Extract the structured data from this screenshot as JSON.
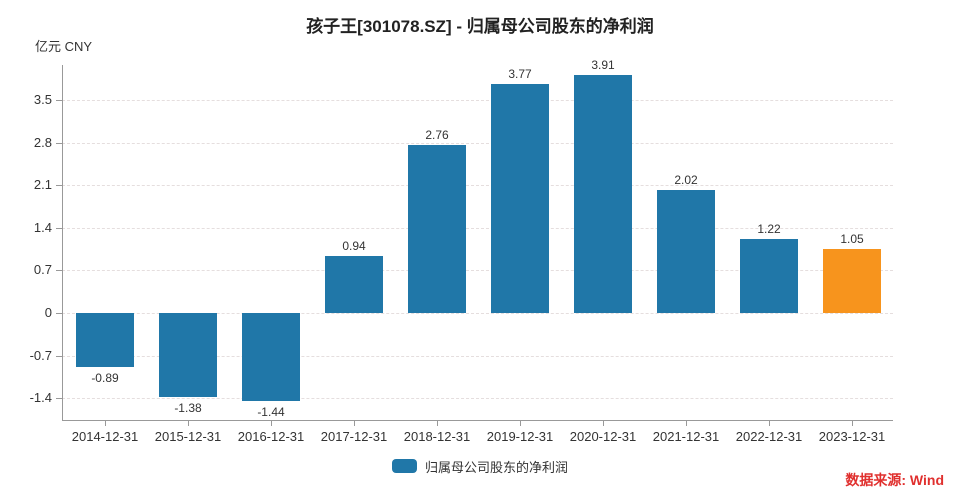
{
  "chart_data": {
    "type": "bar",
    "title": "孩子王[301078.SZ] - 归属母公司股东的净利润",
    "unit_label": "亿元 CNY",
    "categories": [
      "2014-12-31",
      "2015-12-31",
      "2016-12-31",
      "2017-12-31",
      "2018-12-31",
      "2019-12-31",
      "2020-12-31",
      "2021-12-31",
      "2022-12-31",
      "2023-12-31"
    ],
    "values": [
      -0.89,
      -1.38,
      -1.44,
      0.94,
      2.76,
      3.77,
      3.91,
      2.02,
      1.22,
      1.05
    ],
    "bar_labels": [
      "-0.89",
      "-1.38",
      "-1.44",
      "0.94",
      "2.76",
      "3.77",
      "3.91",
      "2.02",
      "1.22",
      "1.05"
    ],
    "highlight_index": 9,
    "y_ticks": [
      {
        "label": "3.5",
        "value": 3.5
      },
      {
        "label": "2.8",
        "value": 2.8
      },
      {
        "label": "2.1",
        "value": 2.1
      },
      {
        "label": "1.4",
        "value": 1.4
      },
      {
        "label": "0.7",
        "value": 0.7
      },
      {
        "label": "0",
        "value": 0
      },
      {
        "label": "-0.7",
        "value": -0.7
      },
      {
        "label": "-1.4",
        "value": -1.4
      }
    ],
    "ylim": [
      -1.76,
      4.08
    ],
    "grid": true,
    "legend": {
      "label": "归属母公司股东的净利润",
      "position": "bottom-center"
    },
    "source": "数据来源: Wind",
    "colors": {
      "bar": "#2077a8",
      "highlight": "#f7941d",
      "axis": "#999999",
      "grid": "#e5dede",
      "text": "#333333",
      "source_text": "#e0302e"
    }
  }
}
